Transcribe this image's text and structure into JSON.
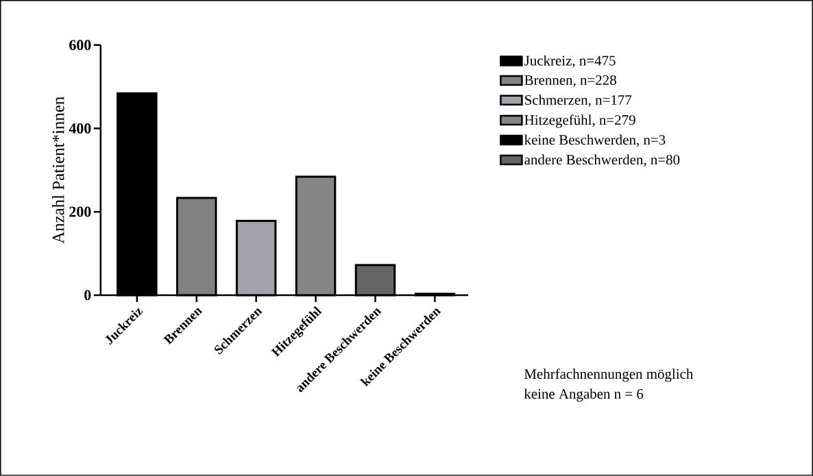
{
  "chart_data": {
    "type": "bar",
    "ylabel": "Anzahl Patient*innen",
    "categories": [
      "Juckreiz",
      "Brennen",
      "Schmerzen",
      "Hitzegefühl",
      "andere Beschwerden",
      "keine Beschwerden"
    ],
    "series": [
      {
        "name": "Juckreiz, n=475",
        "color": "#000000",
        "values": [
          484,
          null,
          null,
          null,
          null,
          null
        ]
      },
      {
        "name": "Brennen, n=228",
        "color": "#828282",
        "values": [
          null,
          233,
          null,
          null,
          null,
          null
        ]
      },
      {
        "name": "Schmerzen, n=177",
        "color": "#a2a2a8",
        "values": [
          null,
          null,
          178,
          null,
          null,
          null
        ]
      },
      {
        "name": "Hitzegefühl, n=279",
        "color": "#858585",
        "values": [
          null,
          null,
          null,
          284,
          null,
          null
        ]
      },
      {
        "name": "keine Beschwerden, n=3",
        "color": "#000000",
        "values": [
          null,
          null,
          null,
          null,
          null,
          3
        ]
      },
      {
        "name": "andere Beschwerden, n=80",
        "color": "#666666",
        "values": [
          null,
          null,
          null,
          null,
          72,
          null
        ]
      }
    ],
    "ylim": [
      0,
      600
    ],
    "yticks": [
      0,
      200,
      400,
      600
    ],
    "grid": false,
    "legend": "right",
    "annotations": [
      "Mehrfachnennungen möglich",
      "keine  Angaben n = 6"
    ]
  }
}
